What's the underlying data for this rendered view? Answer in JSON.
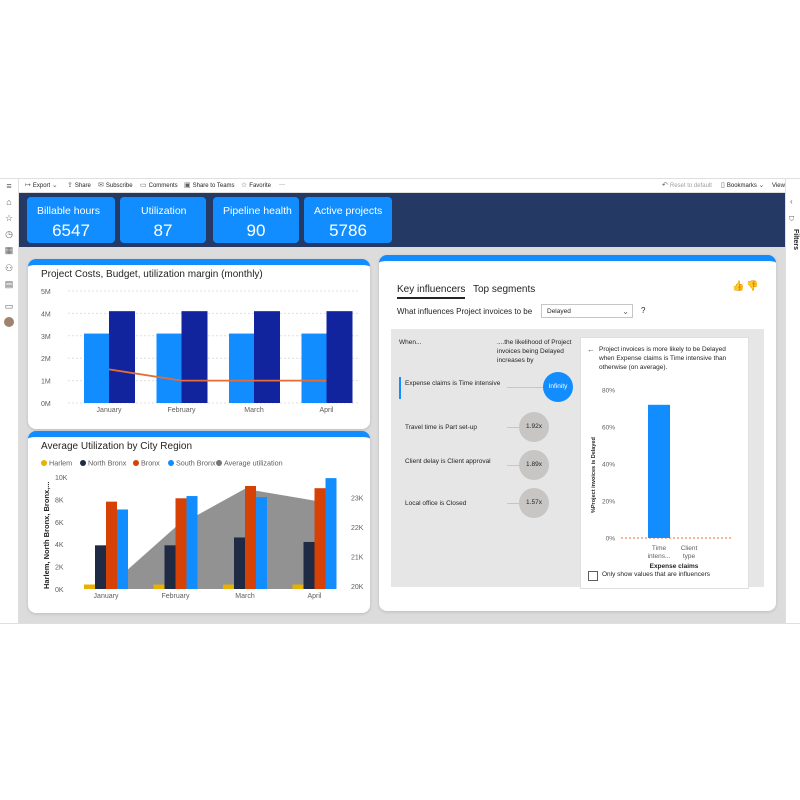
{
  "toolbar": {
    "export": "Export",
    "share": "Share",
    "subscribe": "Subscribe",
    "comments": "Comments",
    "share_teams": "Share to Teams",
    "favorite": "Favorite",
    "more": "···",
    "reset": "Reset to default",
    "bookmarks": "Bookmarks",
    "view": "View"
  },
  "filters_label": "Filters",
  "kpis": [
    {
      "label": "Billable hours",
      "value": "6547"
    },
    {
      "label": "Utilization",
      "value": "87"
    },
    {
      "label": "Pipeline health",
      "value": "90"
    },
    {
      "label": "Active projects",
      "value": "5786"
    }
  ],
  "colors": {
    "accent": "#118dff",
    "header": "#243a64",
    "dark_blue": "#12239e",
    "orange": "#e66c37",
    "harlem": "#e8b100",
    "north_bronx": "#1f2a44",
    "bronx": "#d64106",
    "south_bronx": "#118dff",
    "average": "#777777"
  },
  "chart_data": [
    {
      "type": "bar",
      "title": "Project Costs, Budget, utilization margin (monthly)",
      "categories": [
        "January",
        "February",
        "March",
        "April"
      ],
      "yticks": [
        "0M",
        "1M",
        "2M",
        "3M",
        "4M",
        "5M"
      ],
      "ylim": [
        0,
        5
      ],
      "series": [
        {
          "kind": "bar",
          "values": [
            3.1,
            3.1,
            3.1,
            3.1
          ]
        },
        {
          "kind": "bar",
          "values": [
            4.1,
            4.1,
            4.1,
            4.1
          ]
        },
        {
          "kind": "line",
          "values": [
            1.5,
            1.0,
            1.0,
            1.0
          ]
        }
      ]
    },
    {
      "type": "bar",
      "title": "Average Utilization by City Region",
      "ylabel": "Harlem, North Bronx, Bronx,...",
      "categories": [
        "January",
        "February",
        "March",
        "April"
      ],
      "yticks": [
        "0K",
        "2K",
        "4K",
        "6K",
        "8K",
        "10K"
      ],
      "ylim": [
        0,
        10
      ],
      "y2ticks": [
        "20K",
        "21K",
        "22K",
        "23K"
      ],
      "y2lim": [
        19.9,
        23.7
      ],
      "legend": [
        "Harlem",
        "North Bronx",
        "Bronx",
        "South Bronx",
        "Average utilization"
      ],
      "series": [
        {
          "name": "Harlem",
          "values": [
            0.4,
            0.4,
            0.4,
            0.4
          ]
        },
        {
          "name": "North Bronx",
          "values": [
            3.9,
            3.9,
            4.6,
            4.2
          ]
        },
        {
          "name": "Bronx",
          "values": [
            7.8,
            8.1,
            9.2,
            9.0
          ]
        },
        {
          "name": "South Bronx",
          "values": [
            7.1,
            8.3,
            8.2,
            9.9
          ]
        },
        {
          "name": "Average utilization",
          "kind": "area",
          "values": [
            19.9,
            22.0,
            23.3,
            22.9
          ]
        }
      ]
    },
    {
      "type": "bar",
      "ylabel": "%Project invoices is Delayed",
      "xlabel": "Expense claims",
      "categories": [
        "Time intens...",
        "Client type"
      ],
      "yticks": [
        "0%",
        "20%",
        "40%",
        "60%",
        "80%"
      ],
      "ylim": [
        0,
        80
      ],
      "values": [
        72,
        0
      ]
    }
  ],
  "key_influencers": {
    "tab_key": "Key influencers",
    "tab_top": "Top segments",
    "question": "What influences Project invoices to be",
    "selected": "Delayed",
    "help": "?",
    "col_when": "When...",
    "col_likelihood": "....the likelihood of Project invoices being Delayed increases by",
    "items": [
      {
        "label": "Expense claims is Time intensive",
        "value": "Infinity"
      },
      {
        "label": "Travel time is Part set-up",
        "value": "1.92x"
      },
      {
        "label": "Client delay is Client approval",
        "value": "1.89x"
      },
      {
        "label": "Local office is Closed",
        "value": "1.57x"
      }
    ],
    "detail_text": "Project invoices is more likely to be Delayed when Expense claims is Time intensive than otherwise (on average).",
    "checkbox_label": "Only show values that are influencers"
  }
}
